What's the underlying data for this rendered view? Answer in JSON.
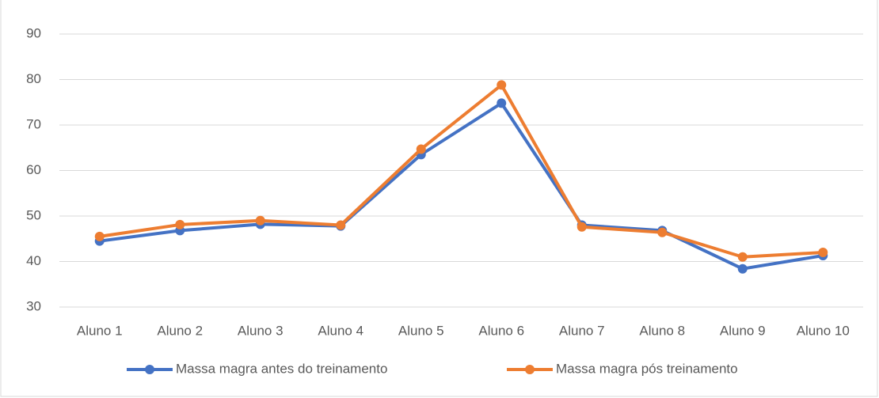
{
  "chart_data": {
    "type": "line",
    "categories": [
      "Aluno 1",
      "Aluno 2",
      "Aluno 3",
      "Aluno 4",
      "Aluno 5",
      "Aluno 6",
      "Aluno 7",
      "Aluno 8",
      "Aluno 9",
      "Aluno 10"
    ],
    "series": [
      {
        "name": "Massa magra antes do treinamento",
        "color": "#4472c4",
        "values": [
          44.5,
          46.8,
          48.2,
          47.8,
          63.5,
          74.8,
          48,
          46.8,
          38.4,
          41.3
        ]
      },
      {
        "name": "Massa magra pós treinamento",
        "color": "#ed7d31",
        "values": [
          45.5,
          48.1,
          49,
          48,
          64.7,
          78.8,
          47.6,
          46.4,
          41,
          42
        ]
      }
    ],
    "ylim": [
      30,
      90
    ],
    "yticks": [
      30,
      40,
      50,
      60,
      70,
      80,
      90
    ],
    "grid": true,
    "legend": "bottom"
  }
}
